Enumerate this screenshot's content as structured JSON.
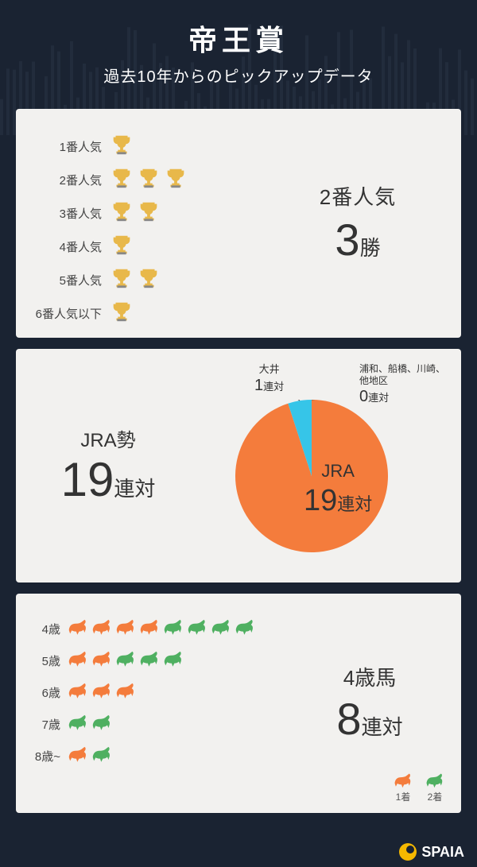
{
  "header": {
    "title": "帝王賞",
    "subtitle": "過去10年からのピックアップデータ"
  },
  "colors": {
    "bg": "#1a2332",
    "card": "#f2f1ef",
    "text": "#333333",
    "trophy_gold": "#d4a017",
    "trophy_body": "#e8b84a",
    "pie_jra": "#f47c3c",
    "pie_ooi": "#36c5e8",
    "pie_other": "#cccccc",
    "horse_orange": "#f47c3c",
    "horse_green": "#4fb061"
  },
  "popularity": {
    "rows": [
      {
        "label": "1番人気",
        "wins": 1
      },
      {
        "label": "2番人気",
        "wins": 3
      },
      {
        "label": "3番人気",
        "wins": 2
      },
      {
        "label": "4番人気",
        "wins": 1
      },
      {
        "label": "5番人気",
        "wins": 2
      },
      {
        "label": "6番人気以下",
        "wins": 1
      }
    ],
    "callout": {
      "line1": "2番人気",
      "big": "3",
      "suffix": "勝"
    }
  },
  "affiliation": {
    "callout": {
      "line1": "JRA勢",
      "big": "19",
      "suffix": "連対"
    },
    "pie": {
      "slices": [
        {
          "name": "JRA",
          "value": 19,
          "label_big": "19",
          "label_suffix": "連対",
          "label_title": "JRA"
        },
        {
          "name": "大井",
          "value": 1,
          "label_big": "1",
          "label_suffix": "連対",
          "label_title": "大井"
        },
        {
          "name": "浦和、船橋、川崎、\n他地区",
          "value": 0,
          "label_big": "0",
          "label_suffix": "連対",
          "label_title": "浦和、船橋、川崎、\n他地区"
        }
      ],
      "radius": 96,
      "start_angle_deg": -90
    }
  },
  "age": {
    "rows": [
      {
        "label": "4歳",
        "first": 4,
        "second": 4
      },
      {
        "label": "5歳",
        "first": 2,
        "second": 3
      },
      {
        "label": "6歳",
        "first": 3,
        "second": 0
      },
      {
        "label": "7歳",
        "first": 0,
        "second": 2
      },
      {
        "label": "8歳~",
        "first": 1,
        "second": 1
      }
    ],
    "callout": {
      "line1": "4歳馬",
      "big": "8",
      "suffix": "連対"
    },
    "legend": [
      {
        "label": "1着"
      },
      {
        "label": "2着"
      }
    ]
  },
  "footer": {
    "brand": "SPAIA"
  }
}
